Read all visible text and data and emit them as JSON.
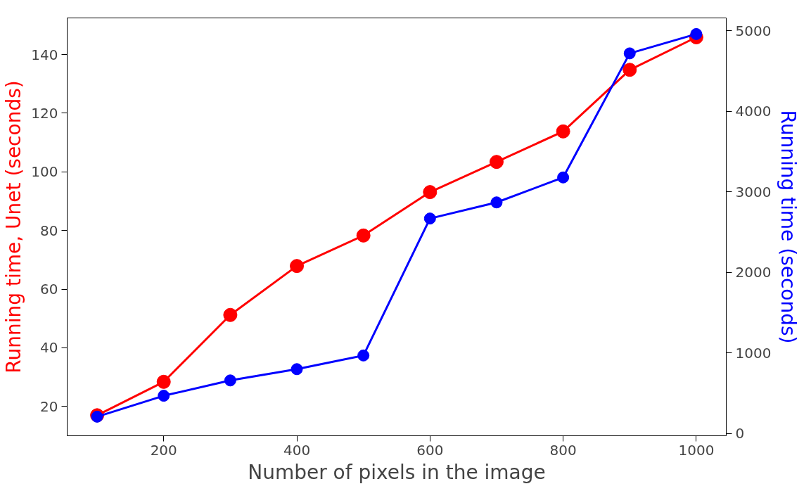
{
  "chart_data": {
    "type": "line",
    "xlabel": "Number of pixels in the image",
    "ylabel": "Running time, Unet (seconds)",
    "y2label": "Running time (seconds)",
    "x": [
      100,
      200,
      300,
      400,
      500,
      600,
      700,
      800,
      900,
      1000
    ],
    "series": [
      {
        "color": "#ff0000",
        "values": [
          17.0,
          28.4,
          51.2,
          67.9,
          78.3,
          93.1,
          103.4,
          113.8,
          134.8,
          145.9
        ]
      },
      {
        "color": "#0000ff",
        "axis": "y2",
        "values": [
          210,
          470,
          660,
          800,
          970,
          2670,
          2870,
          3180,
          4720,
          4960
        ]
      }
    ],
    "xlim": [
      55,
      1045
    ],
    "xticks": [
      200,
      400,
      600,
      800,
      1000
    ],
    "ylim": [
      10,
      152.5
    ],
    "yticks": [
      20,
      40,
      60,
      80,
      100,
      120,
      140
    ],
    "y2lim": [
      -27,
      5160
    ],
    "y2ticks": [
      0,
      1000,
      2000,
      3000,
      4000,
      5000
    ],
    "marker": "circle",
    "line_style": "solid",
    "grid": false
  }
}
